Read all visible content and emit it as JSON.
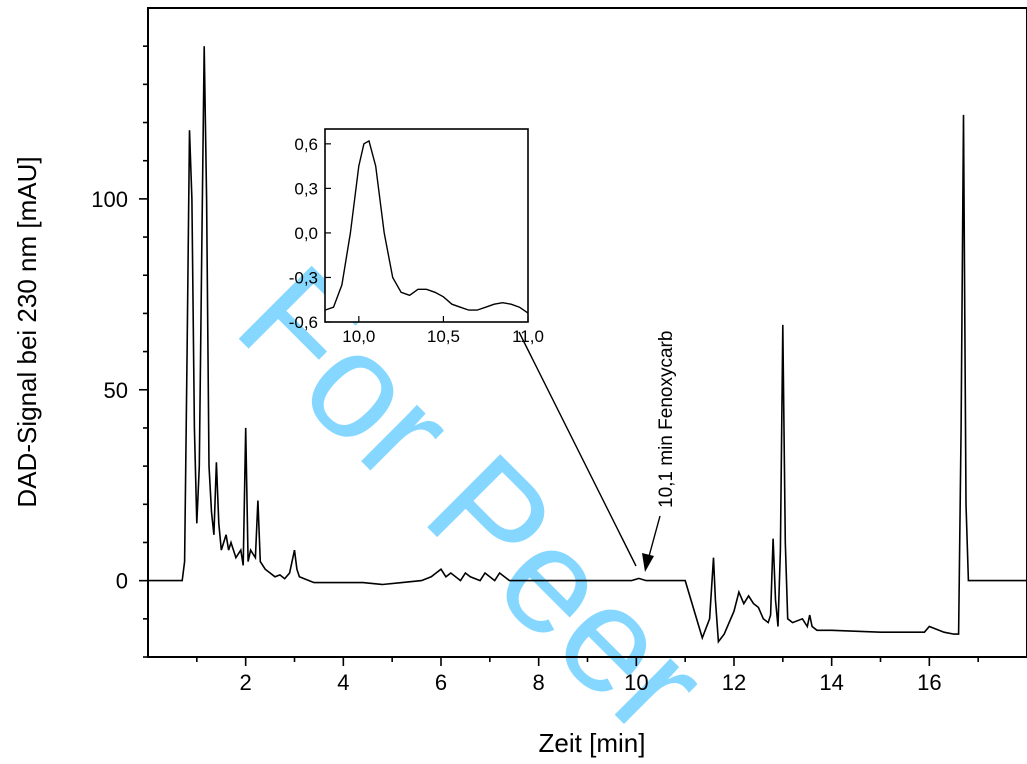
{
  "watermark": "For Peer",
  "chart_data": [
    {
      "type": "line",
      "title": "",
      "xlabel": "Zeit [min]",
      "ylabel": "DAD-Signal bei 230 nm [mAU]",
      "xlim": [
        0,
        18
      ],
      "ylim": [
        -20,
        150
      ],
      "x_ticks": [
        2,
        4,
        6,
        8,
        10,
        12,
        14,
        16
      ],
      "y_ticks": [
        0,
        50,
        100
      ],
      "grid": false,
      "series": [
        {
          "x": [
            0.0,
            0.7,
            0.75,
            0.8,
            0.85,
            0.9,
            0.95,
            1.0,
            1.05,
            1.1,
            1.15,
            1.2,
            1.25,
            1.3,
            1.35,
            1.4,
            1.45,
            1.5,
            1.6,
            1.65,
            1.7,
            1.8,
            1.9,
            1.95,
            2.0,
            2.05,
            2.1,
            2.2,
            2.25,
            2.3,
            2.4,
            2.5,
            2.6,
            2.7,
            2.8,
            2.9,
            3.0,
            3.05,
            3.1,
            3.2,
            3.4,
            3.6,
            4.0,
            4.4,
            4.8,
            5.2,
            5.6,
            5.8,
            5.9,
            6.0,
            6.1,
            6.2,
            6.4,
            6.5,
            6.6,
            6.8,
            6.9,
            7.0,
            7.1,
            7.2,
            7.4,
            8.0,
            9.0,
            9.9,
            10.05,
            10.2,
            10.4,
            11.0,
            11.35,
            11.5,
            11.58,
            11.62,
            11.68,
            11.8,
            12.0,
            12.1,
            12.2,
            12.3,
            12.4,
            12.5,
            12.6,
            12.7,
            12.75,
            12.8,
            12.85,
            12.9,
            12.95,
            13.0,
            13.05,
            13.1,
            13.2,
            13.4,
            13.5,
            13.55,
            13.6,
            13.7,
            13.8,
            14.0,
            15.0,
            15.9,
            16.0,
            16.1,
            16.3,
            16.5,
            16.6,
            16.65,
            16.7,
            16.75,
            16.8,
            17.0,
            18.0
          ],
          "y": [
            0,
            0,
            5,
            60,
            118,
            100,
            40,
            15,
            30,
            85,
            140,
            100,
            30,
            18,
            12,
            31,
            15,
            8,
            12,
            8,
            10,
            6,
            8,
            4,
            40,
            5,
            8,
            6,
            21,
            5,
            3,
            2,
            1,
            1.5,
            0.5,
            2,
            8,
            3,
            1,
            0.5,
            -0.5,
            -0.5,
            -0.5,
            -0.5,
            -1,
            -0.5,
            0,
            1,
            2,
            3,
            1,
            2,
            0,
            2,
            1,
            0,
            2,
            1,
            0,
            2,
            0,
            0,
            0,
            0,
            0.6,
            0,
            0,
            0,
            -15,
            -10,
            6,
            -5,
            -16,
            -14,
            -8,
            -3,
            -6,
            -4,
            -6,
            -7,
            -10,
            -11,
            -9,
            11,
            -5,
            -12,
            8,
            67,
            10,
            -10,
            -11,
            -10,
            -12,
            -9,
            -12,
            -13,
            -13,
            -13,
            -13.5,
            -13.5,
            -12,
            -12.5,
            -13.5,
            -14,
            -14,
            40,
            122,
            20,
            0,
            0,
            0
          ]
        }
      ]
    },
    {
      "type": "line",
      "title": "",
      "xlabel": "",
      "ylabel": "",
      "xlim": [
        9.8,
        11.0
      ],
      "ylim": [
        -0.6,
        0.7
      ],
      "x_ticks": [
        "10,0",
        "10,5",
        "11,0"
      ],
      "x_tick_values": [
        10.0,
        10.5,
        11.0
      ],
      "y_ticks": [
        "0,6",
        "0,3",
        "0,0",
        "-0,3",
        "-0,6"
      ],
      "y_tick_values": [
        0.6,
        0.3,
        0.0,
        -0.3,
        -0.6
      ],
      "series": [
        {
          "x": [
            9.8,
            9.85,
            9.9,
            9.95,
            10.0,
            10.03,
            10.06,
            10.1,
            10.15,
            10.2,
            10.25,
            10.3,
            10.35,
            10.4,
            10.45,
            10.5,
            10.55,
            10.6,
            10.65,
            10.7,
            10.75,
            10.8,
            10.85,
            10.9,
            10.95,
            11.0
          ],
          "y": [
            -0.52,
            -0.5,
            -0.35,
            0.0,
            0.45,
            0.6,
            0.62,
            0.45,
            0.0,
            -0.3,
            -0.4,
            -0.42,
            -0.38,
            -0.38,
            -0.4,
            -0.43,
            -0.48,
            -0.5,
            -0.52,
            -0.52,
            -0.5,
            -0.48,
            -0.47,
            -0.48,
            -0.5,
            -0.54
          ]
        }
      ]
    }
  ],
  "annotations": {
    "peak_label": "10,1 min Fenoxycarb"
  }
}
